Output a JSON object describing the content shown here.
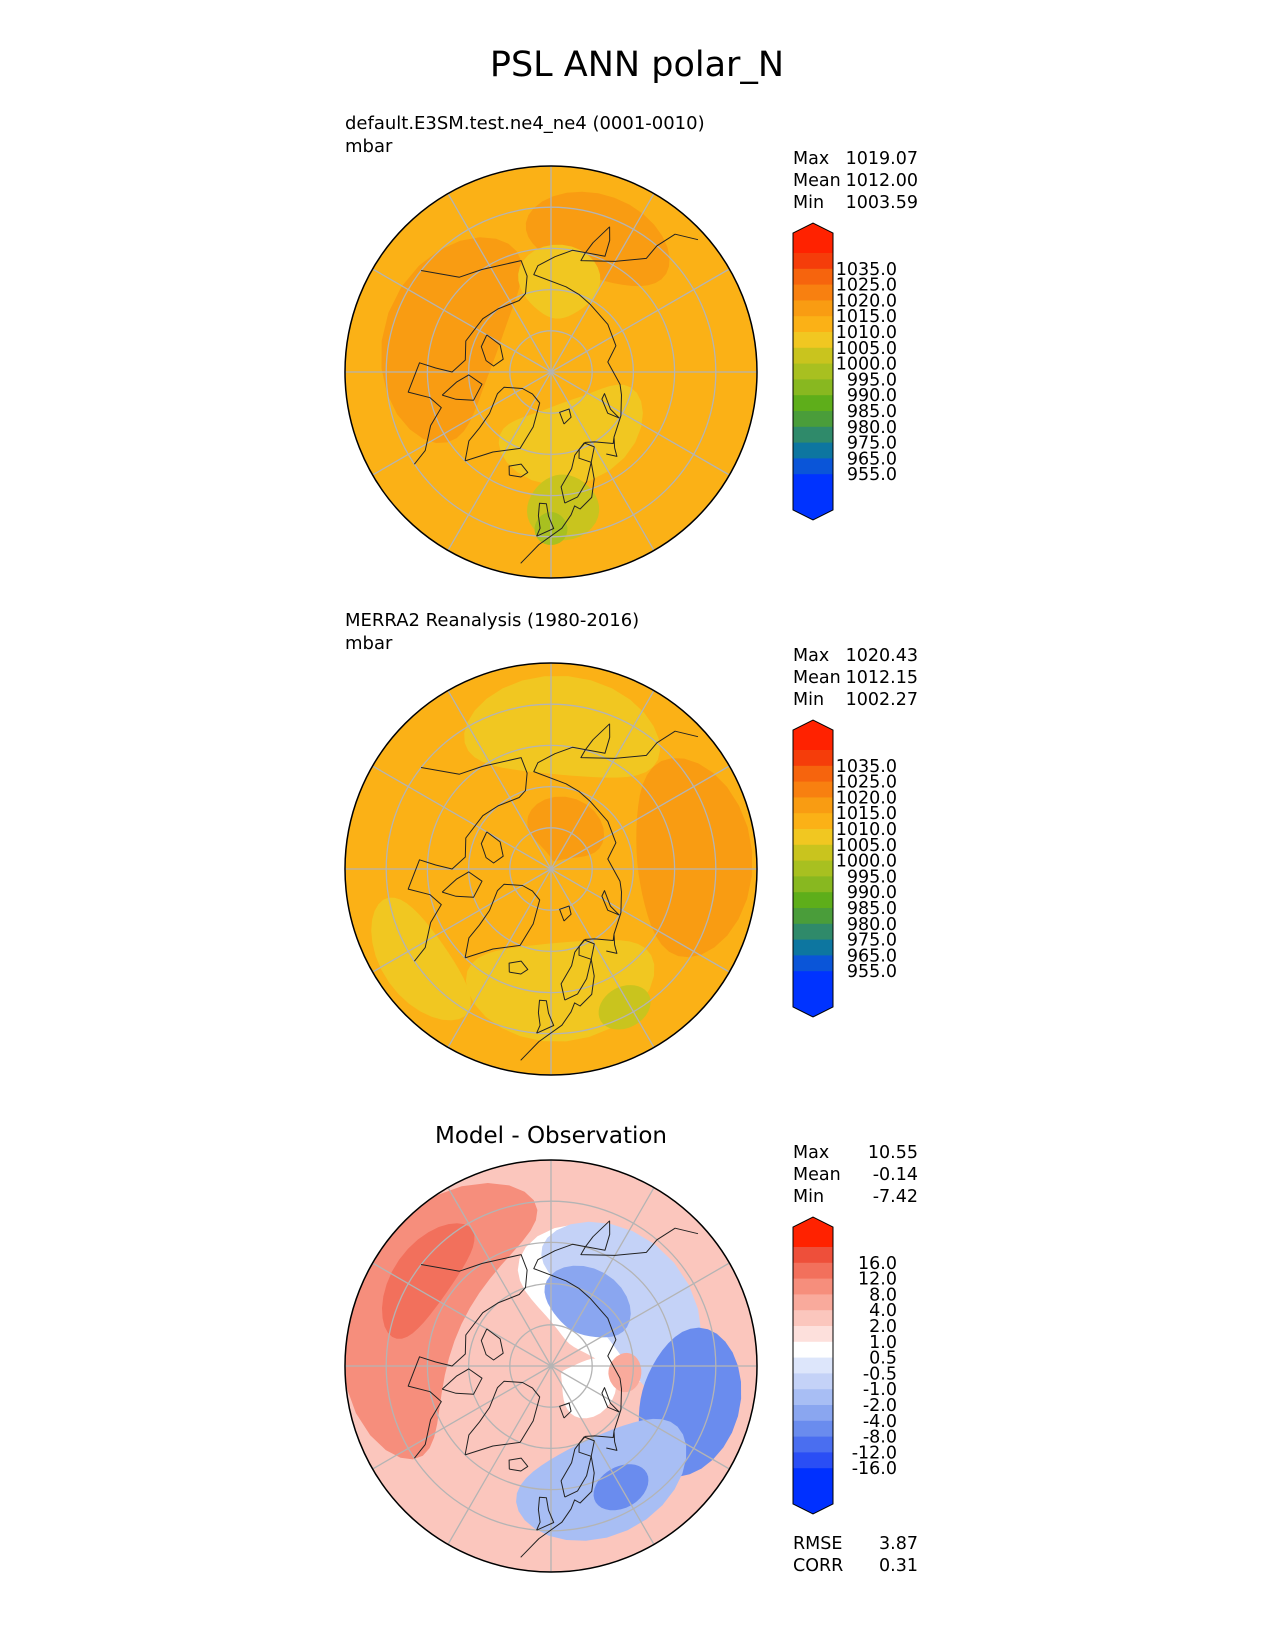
{
  "figure": {
    "title": "PSL ANN polar_N"
  },
  "colors": {
    "grid": "#b4b4b4",
    "coast": "#222222",
    "abs_levels": [
      "#0033ff",
      "#0a55d8",
      "#0d76a0",
      "#2f8a6a",
      "#4a9d3a",
      "#5eae1a",
      "#88b820",
      "#a8c020",
      "#c9c41e",
      "#f1c721",
      "#fbb116",
      "#f99c12",
      "#f88010",
      "#f6640d",
      "#f53d0a",
      "#ff2200"
    ],
    "diff_levels": [
      "#0030ff",
      "#2a4ef5",
      "#4a6ef0",
      "#6a8cee",
      "#8aa6f0",
      "#a8bef4",
      "#c4d2f7",
      "#dde6fb",
      "#ffffff",
      "#fde0dc",
      "#fbc6bd",
      "#f9aa9c",
      "#f68e7c",
      "#f2705c",
      "#ee4f3a",
      "#ff2200"
    ]
  },
  "chart_data": [
    {
      "type": "polar_contour",
      "title": "default.E3SM.test.ne4_ne4 (0001-0010)",
      "units": "mbar",
      "stats": [
        {
          "label": "Max",
          "value": "1019.07"
        },
        {
          "label": "Mean",
          "value": "1012.00"
        },
        {
          "label": "Min",
          "value": "1003.59"
        }
      ],
      "colorbar_levels": [
        "1035.0",
        "1025.0",
        "1020.0",
        "1015.0",
        "1010.0",
        "1005.0",
        "1000.0",
        "995.0",
        "990.0",
        "985.0",
        "980.0",
        "975.0",
        "965.0",
        "955.0"
      ],
      "background": "#fbb116",
      "regions": [
        {
          "color": "#f99c12",
          "lat": 62,
          "lon": -110,
          "rlat": 14,
          "rlon": 55
        },
        {
          "color": "#f99c12",
          "lat": 55,
          "lon": 160,
          "rlat": 10,
          "rlon": 30
        },
        {
          "color": "#f1c721",
          "lat": 72,
          "lon": 20,
          "rlat": 10,
          "rlon": 60
        },
        {
          "color": "#f1c721",
          "lat": 68,
          "lon": 175,
          "rlat": 9,
          "rlon": 25
        },
        {
          "color": "#c9c41e",
          "lat": 57,
          "lon": 5,
          "rlat": 8,
          "rlon": 15
        },
        {
          "color": "#a8c020",
          "lat": 52,
          "lon": 0,
          "rlat": 4,
          "rlon": 6
        }
      ]
    },
    {
      "type": "polar_contour",
      "title": "MERRA2 Reanalysis (1980-2016)",
      "units": "mbar",
      "stats": [
        {
          "label": "Max",
          "value": "1020.43"
        },
        {
          "label": "Mean",
          "value": "1012.15"
        },
        {
          "label": "Min",
          "value": "1002.27"
        }
      ],
      "colorbar_levels": [
        "1035.0",
        "1025.0",
        "1020.0",
        "1015.0",
        "1010.0",
        "1005.0",
        "1000.0",
        "995.0",
        "990.0",
        "985.0",
        "980.0",
        "975.0",
        "965.0",
        "955.0"
      ],
      "background": "#fbb116",
      "regions": [
        {
          "color": "#f99c12",
          "lat": 55,
          "lon": 95,
          "rlat": 14,
          "rlon": 40
        },
        {
          "color": "#f99c12",
          "lat": 80,
          "lon": 160,
          "rlat": 8,
          "rlon": 50
        },
        {
          "color": "#f1c721",
          "lat": 55,
          "lon": 175,
          "rlat": 12,
          "rlon": 40
        },
        {
          "color": "#f1c721",
          "lat": 60,
          "lon": 5,
          "rlat": 12,
          "rlon": 45
        },
        {
          "color": "#f1c721",
          "lat": 50,
          "lon": -55,
          "rlat": 8,
          "rlon": 25
        },
        {
          "color": "#c9c41e",
          "lat": 52,
          "lon": 28,
          "rlat": 5,
          "rlon": 10
        }
      ]
    },
    {
      "type": "polar_contour",
      "title": "Model - Observation",
      "units": "",
      "stats": [
        {
          "label": "Max",
          "value": "10.55"
        },
        {
          "label": "Mean",
          "value": "-0.14"
        },
        {
          "label": "Min",
          "value": "-7.42"
        }
      ],
      "colorbar_levels": [
        "16.0",
        "12.0",
        "8.0",
        "4.0",
        "2.0",
        "1.0",
        "0.5",
        "-0.5",
        "-1.0",
        "-2.0",
        "-4.0",
        "-8.0",
        "-12.0",
        "-16.0"
      ],
      "footer_stats": [
        {
          "label": "RMSE",
          "value": "3.87"
        },
        {
          "label": "CORR",
          "value": "0.31"
        }
      ],
      "background": "#fbc6bd",
      "regions": [
        {
          "color": "#f68e7c",
          "lat": 52,
          "lon": -115,
          "rlat": 14,
          "rlon": 60
        },
        {
          "color": "#f2705c",
          "lat": 52,
          "lon": -125,
          "rlat": 7,
          "rlon": 25
        },
        {
          "color": "#ffffff",
          "lat": 68,
          "lon": 140,
          "rlat": 15,
          "rlon": 60
        },
        {
          "color": "#c4d2f7",
          "lat": 63,
          "lon": 130,
          "rlat": 12,
          "rlon": 55
        },
        {
          "color": "#8aa6f0",
          "lat": 72,
          "lon": 150,
          "rlat": 8,
          "rlon": 35
        },
        {
          "color": "#6a8cee",
          "lat": 55,
          "lon": 75,
          "rlat": 12,
          "rlon": 30
        },
        {
          "color": "#a8bef4",
          "lat": 58,
          "lon": 25,
          "rlat": 12,
          "rlon": 40
        },
        {
          "color": "#6a8cee",
          "lat": 56,
          "lon": 30,
          "rlat": 5,
          "rlon": 12
        },
        {
          "color": "#ffffff",
          "lat": 80,
          "lon": 60,
          "rlat": 7,
          "rlon": 40
        },
        {
          "color": "#f9aa9c",
          "lat": 72,
          "lon": 85,
          "rlat": 4,
          "rlon": 15
        }
      ]
    }
  ]
}
